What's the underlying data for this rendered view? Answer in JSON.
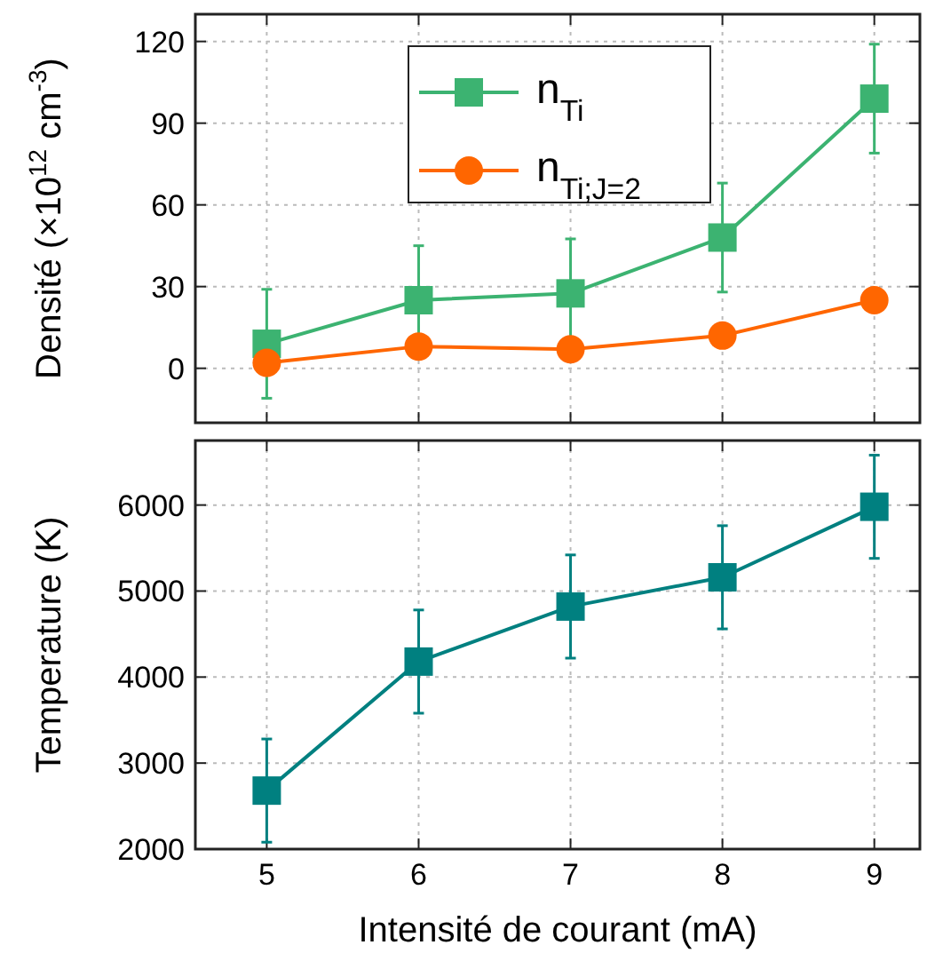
{
  "chart_data": [
    {
      "type": "line",
      "ylabel": "Densité (×10$^{12}$ cm$^{-3}$)",
      "x": [
        5,
        6,
        7,
        8,
        9
      ],
      "xlim": [
        4.53,
        9.3
      ],
      "xticks": [
        5,
        6,
        7,
        8,
        9
      ],
      "ylim": [
        -20,
        130
      ],
      "yticks": [
        0,
        30,
        60,
        90,
        120
      ],
      "grid": true,
      "legend": "top",
      "tick_labels": "y",
      "series": [
        {
          "name": "n$_{Ti}$",
          "color": "#3cb371",
          "marker": "square",
          "values": [
            9,
            25,
            27.5,
            48,
            99
          ],
          "errors": [
            20,
            20,
            20,
            20,
            20
          ]
        },
        {
          "name": "n$_{Ti;J=2}$",
          "color": "#ff6600",
          "marker": "circle",
          "values": [
            2,
            8,
            7,
            12,
            25
          ]
        }
      ]
    },
    {
      "type": "line",
      "xlabel": "Intensité de courant (mA)",
      "ylabel": "Temperature (K)",
      "x": [
        5,
        6,
        7,
        8,
        9
      ],
      "xlim": [
        4.53,
        9.3
      ],
      "xticks": [
        5,
        6,
        7,
        8,
        9
      ],
      "ylim": [
        2000,
        6750
      ],
      "yticks": [
        2000,
        3000,
        4000,
        5000,
        6000
      ],
      "grid": true,
      "legend": false,
      "series": [
        {
          "color": "#008080",
          "marker": "square",
          "values": [
            2680,
            4180,
            4820,
            5160,
            5980
          ],
          "errors": [
            600,
            600,
            600,
            600,
            600
          ]
        }
      ]
    }
  ]
}
